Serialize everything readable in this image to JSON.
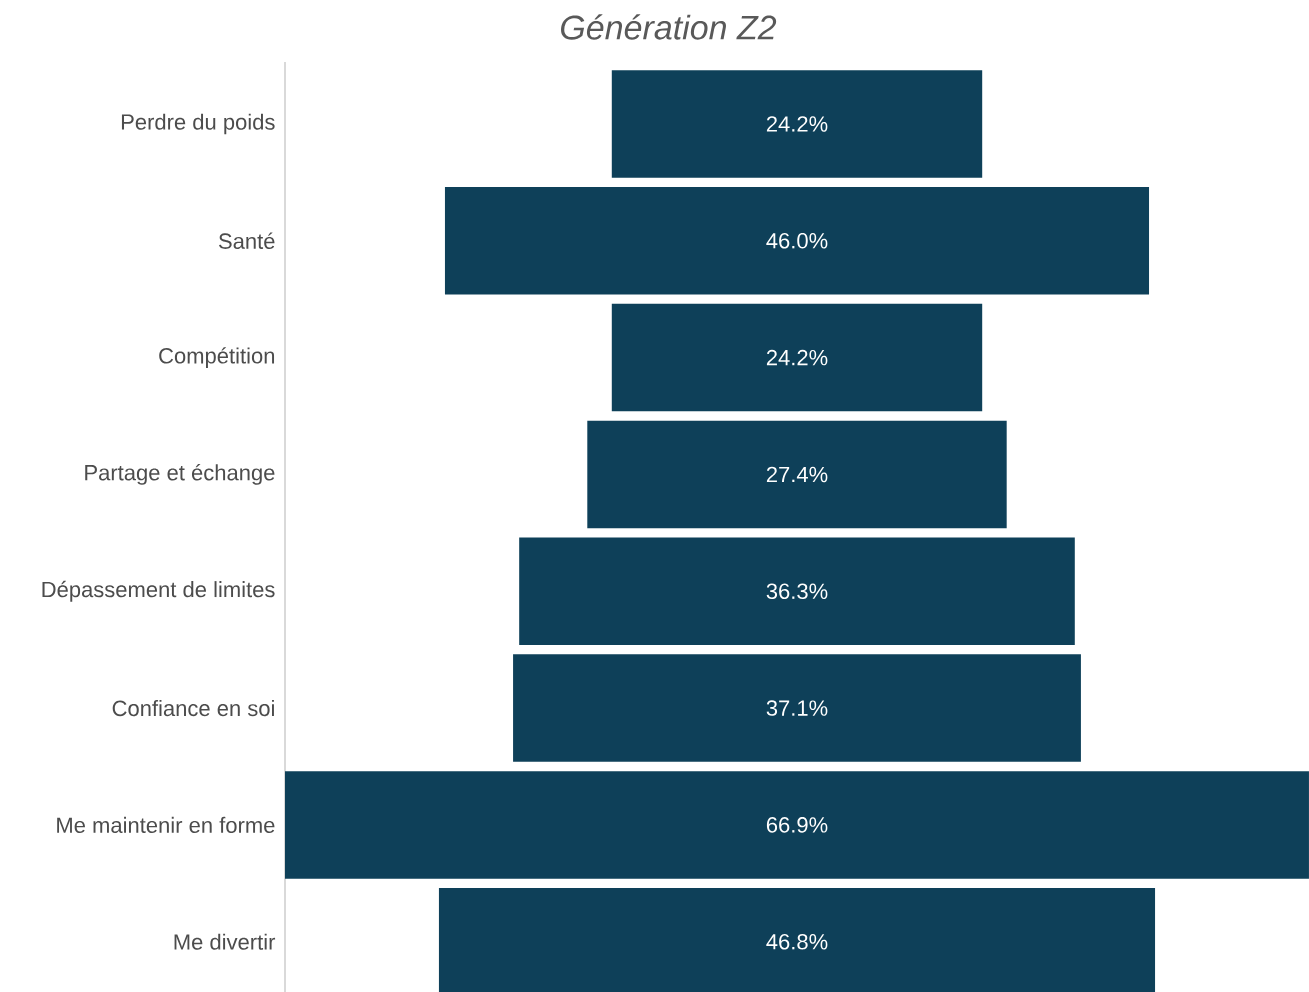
{
  "chart_data": {
    "type": "other",
    "title": "Génération Z2",
    "categories": [
      "Perdre du poids",
      "Santé",
      "Compétition",
      "Partage et échange",
      "Dépassement de limites",
      "Confiance en soi",
      "Me maintenir en forme",
      "Me divertir"
    ],
    "values": [
      24.2,
      46.0,
      24.2,
      27.4,
      36.3,
      37.1,
      66.9,
      46.8
    ],
    "value_labels": [
      "24.2%",
      "46.0%",
      "24.2%",
      "27.4%",
      "36.3%",
      "37.1%",
      "66.9%",
      "46.8%"
    ],
    "color": "#0e4059"
  }
}
